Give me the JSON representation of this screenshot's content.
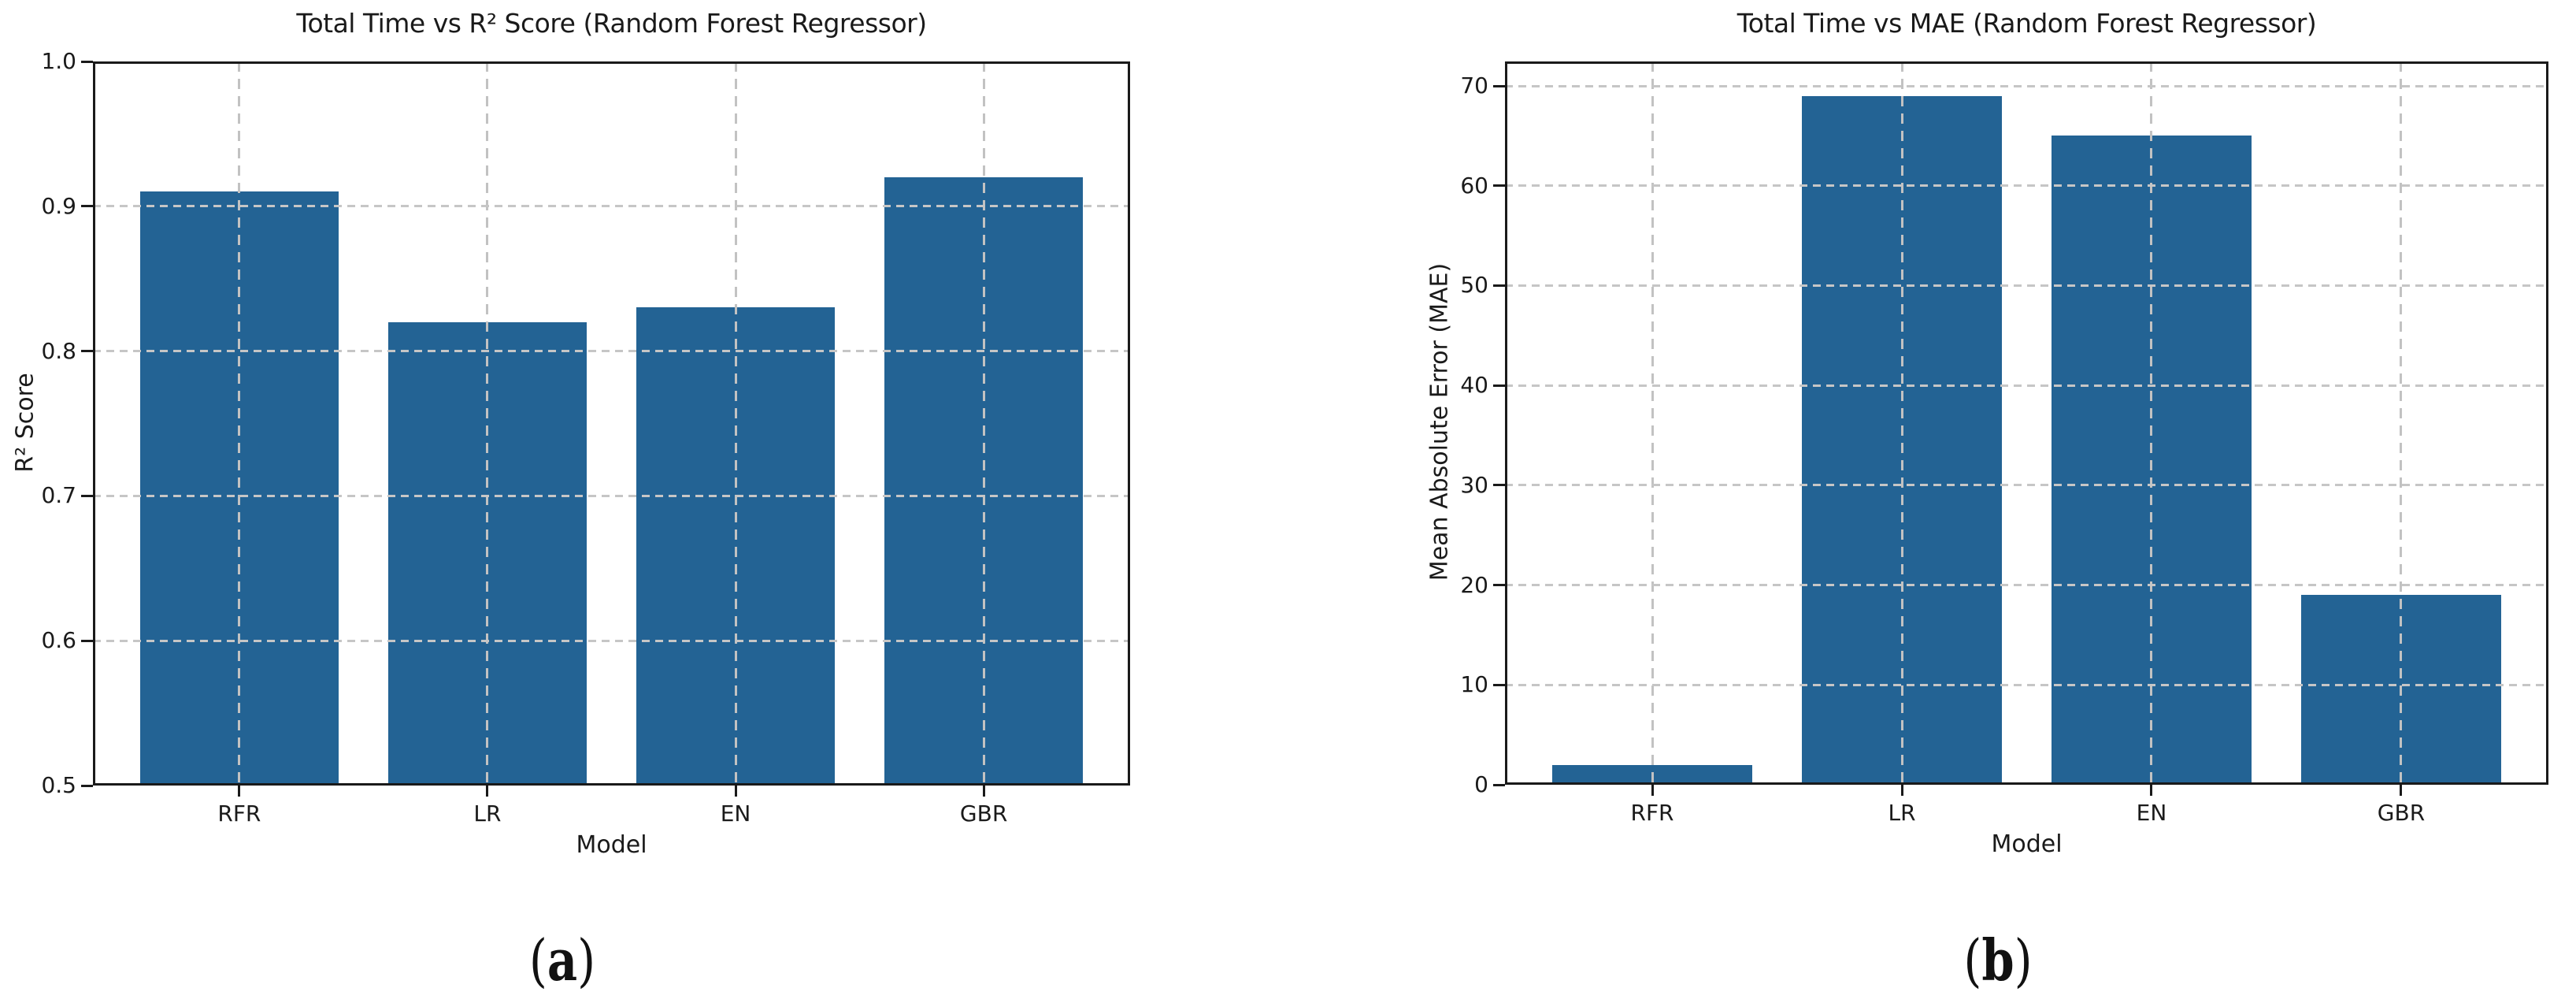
{
  "page": {
    "background": "#ffffff"
  },
  "chart_data": [
    {
      "type": "bar",
      "title": "Total Time vs R² Score (Random Forest Regressor)",
      "xlabel": "Model",
      "ylabel": "R² Score",
      "categories": [
        "RFR",
        "LR",
        "EN",
        "GBR"
      ],
      "values": [
        0.91,
        0.82,
        0.83,
        0.92
      ],
      "ylim": [
        0.5,
        1.0
      ],
      "yticks": [
        0.5,
        0.6,
        0.7,
        0.8,
        0.9,
        1.0
      ],
      "ytick_labels": [
        "0.5",
        "0.6",
        "0.7",
        "0.8",
        "0.9",
        "1.0"
      ],
      "grid": true,
      "grid_style": "dashed",
      "legend": "none",
      "bar_color": "#236394",
      "grid_color": "#c6c6c6",
      "spine_color": "#1a1a1a"
    },
    {
      "type": "bar",
      "title": "Total Time vs MAE (Random Forest Regressor)",
      "xlabel": "Model",
      "ylabel": "Mean Absolute Error (MAE)",
      "categories": [
        "RFR",
        "LR",
        "EN",
        "GBR"
      ],
      "values": [
        2,
        69,
        65,
        19
      ],
      "ylim": [
        0,
        72.45
      ],
      "yticks": [
        0,
        10,
        20,
        30,
        40,
        50,
        60,
        70
      ],
      "ytick_labels": [
        "0",
        "10",
        "20",
        "30",
        "40",
        "50",
        "60",
        "70"
      ],
      "grid": true,
      "grid_style": "dashed",
      "legend": "none",
      "bar_color": "#236394",
      "grid_color": "#c6c6c6",
      "spine_color": "#1a1a1a"
    }
  ],
  "captions": [
    {
      "open": "(",
      "letter": "a",
      "close": ")"
    },
    {
      "open": "(",
      "letter": "b",
      "close": ")"
    }
  ]
}
